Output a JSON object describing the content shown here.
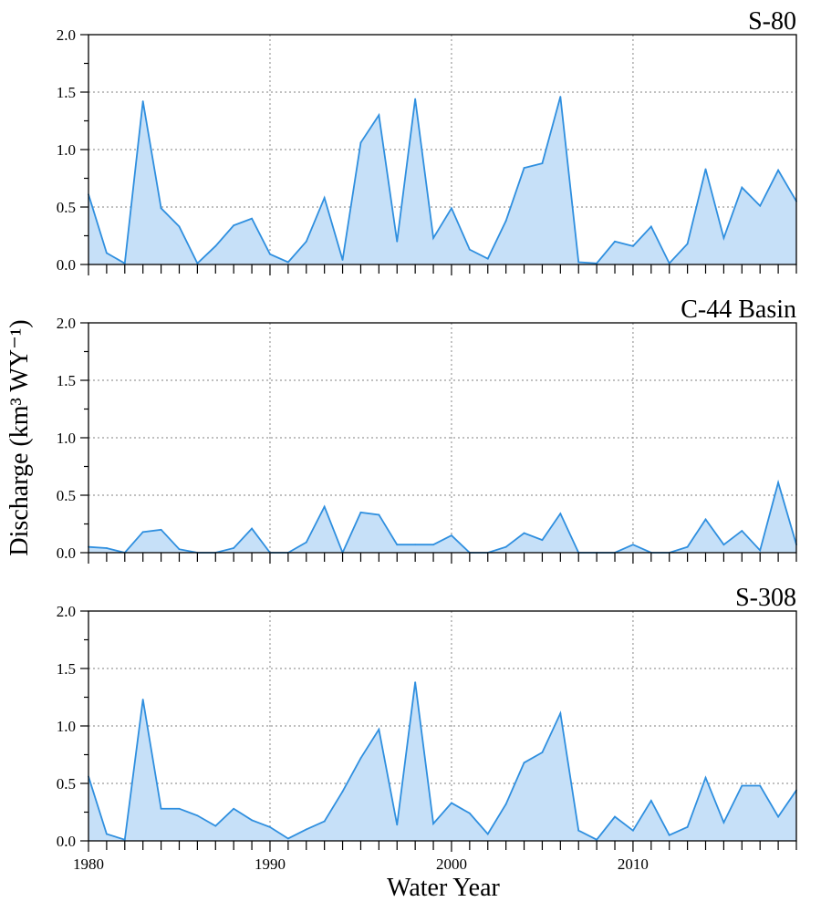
{
  "axes": {
    "xlabel": "Water Year",
    "ylabel": "Discharge (km³ WY⁻¹)",
    "xticks": [
      "1980",
      "1990",
      "2000",
      "2010"
    ],
    "yticks": [
      "0.0",
      "0.5",
      "1.0",
      "1.5",
      "2.0"
    ]
  },
  "colors": {
    "line": "#2f8fdf",
    "fill": "#c6e0f8",
    "grid": "#9a9a9a",
    "axis": "#000000"
  },
  "chart_data": [
    {
      "type": "area",
      "title": "S-80",
      "x": [
        1980,
        1981,
        1982,
        1983,
        1984,
        1985,
        1986,
        1987,
        1988,
        1989,
        1990,
        1991,
        1992,
        1993,
        1994,
        1995,
        1996,
        1997,
        1998,
        1999,
        2000,
        2001,
        2002,
        2003,
        2004,
        2005,
        2006,
        2007,
        2008,
        2009,
        2010,
        2011,
        2012,
        2013,
        2014,
        2015,
        2016,
        2017,
        2018,
        2019
      ],
      "y": [
        0.61,
        0.1,
        0.01,
        1.42,
        0.49,
        0.33,
        0.01,
        0.16,
        0.34,
        0.4,
        0.09,
        0.02,
        0.2,
        0.58,
        0.04,
        1.06,
        1.3,
        0.2,
        1.44,
        0.23,
        0.49,
        0.13,
        0.05,
        0.38,
        0.84,
        0.88,
        1.46,
        0.02,
        0.01,
        0.2,
        0.16,
        0.33,
        0.01,
        0.18,
        0.83,
        0.23,
        0.67,
        0.51,
        0.82,
        0.55
      ],
      "xlim": [
        1980,
        2019
      ],
      "ylim": [
        0,
        2.0
      ],
      "grid": true
    },
    {
      "type": "area",
      "title": "C-44 Basin",
      "x": [
        1980,
        1981,
        1982,
        1983,
        1984,
        1985,
        1986,
        1987,
        1988,
        1989,
        1990,
        1991,
        1992,
        1993,
        1994,
        1995,
        1996,
        1997,
        1998,
        1999,
        2000,
        2001,
        2002,
        2003,
        2004,
        2005,
        2006,
        2007,
        2008,
        2009,
        2010,
        2011,
        2012,
        2013,
        2014,
        2015,
        2016,
        2017,
        2018,
        2019
      ],
      "y": [
        0.05,
        0.04,
        0.0,
        0.18,
        0.2,
        0.03,
        0.0,
        0.0,
        0.04,
        0.21,
        0.0,
        0.0,
        0.09,
        0.4,
        0.0,
        0.35,
        0.33,
        0.07,
        0.07,
        0.07,
        0.15,
        0.0,
        0.0,
        0.05,
        0.17,
        0.11,
        0.34,
        0.0,
        0.0,
        0.0,
        0.07,
        0.0,
        0.0,
        0.05,
        0.29,
        0.07,
        0.19,
        0.02,
        0.61,
        0.07
      ],
      "xlim": [
        1980,
        2019
      ],
      "ylim": [
        0,
        2.0
      ],
      "grid": true
    },
    {
      "type": "area",
      "title": "S-308",
      "x": [
        1980,
        1981,
        1982,
        1983,
        1984,
        1985,
        1986,
        1987,
        1988,
        1989,
        1990,
        1991,
        1992,
        1993,
        1994,
        1995,
        1996,
        1997,
        1998,
        1999,
        2000,
        2001,
        2002,
        2003,
        2004,
        2005,
        2006,
        2007,
        2008,
        2009,
        2010,
        2011,
        2012,
        2013,
        2014,
        2015,
        2016,
        2017,
        2018,
        2019
      ],
      "y": [
        0.56,
        0.06,
        0.01,
        1.23,
        0.28,
        0.28,
        0.22,
        0.13,
        0.28,
        0.18,
        0.12,
        0.02,
        0.1,
        0.17,
        0.43,
        0.72,
        0.97,
        0.14,
        1.38,
        0.15,
        0.33,
        0.24,
        0.06,
        0.32,
        0.68,
        0.77,
        1.11,
        0.09,
        0.01,
        0.21,
        0.09,
        0.35,
        0.05,
        0.12,
        0.55,
        0.16,
        0.48,
        0.48,
        0.21,
        0.44
      ],
      "xlim": [
        1980,
        2019
      ],
      "ylim": [
        0,
        2.0
      ],
      "grid": true
    }
  ]
}
